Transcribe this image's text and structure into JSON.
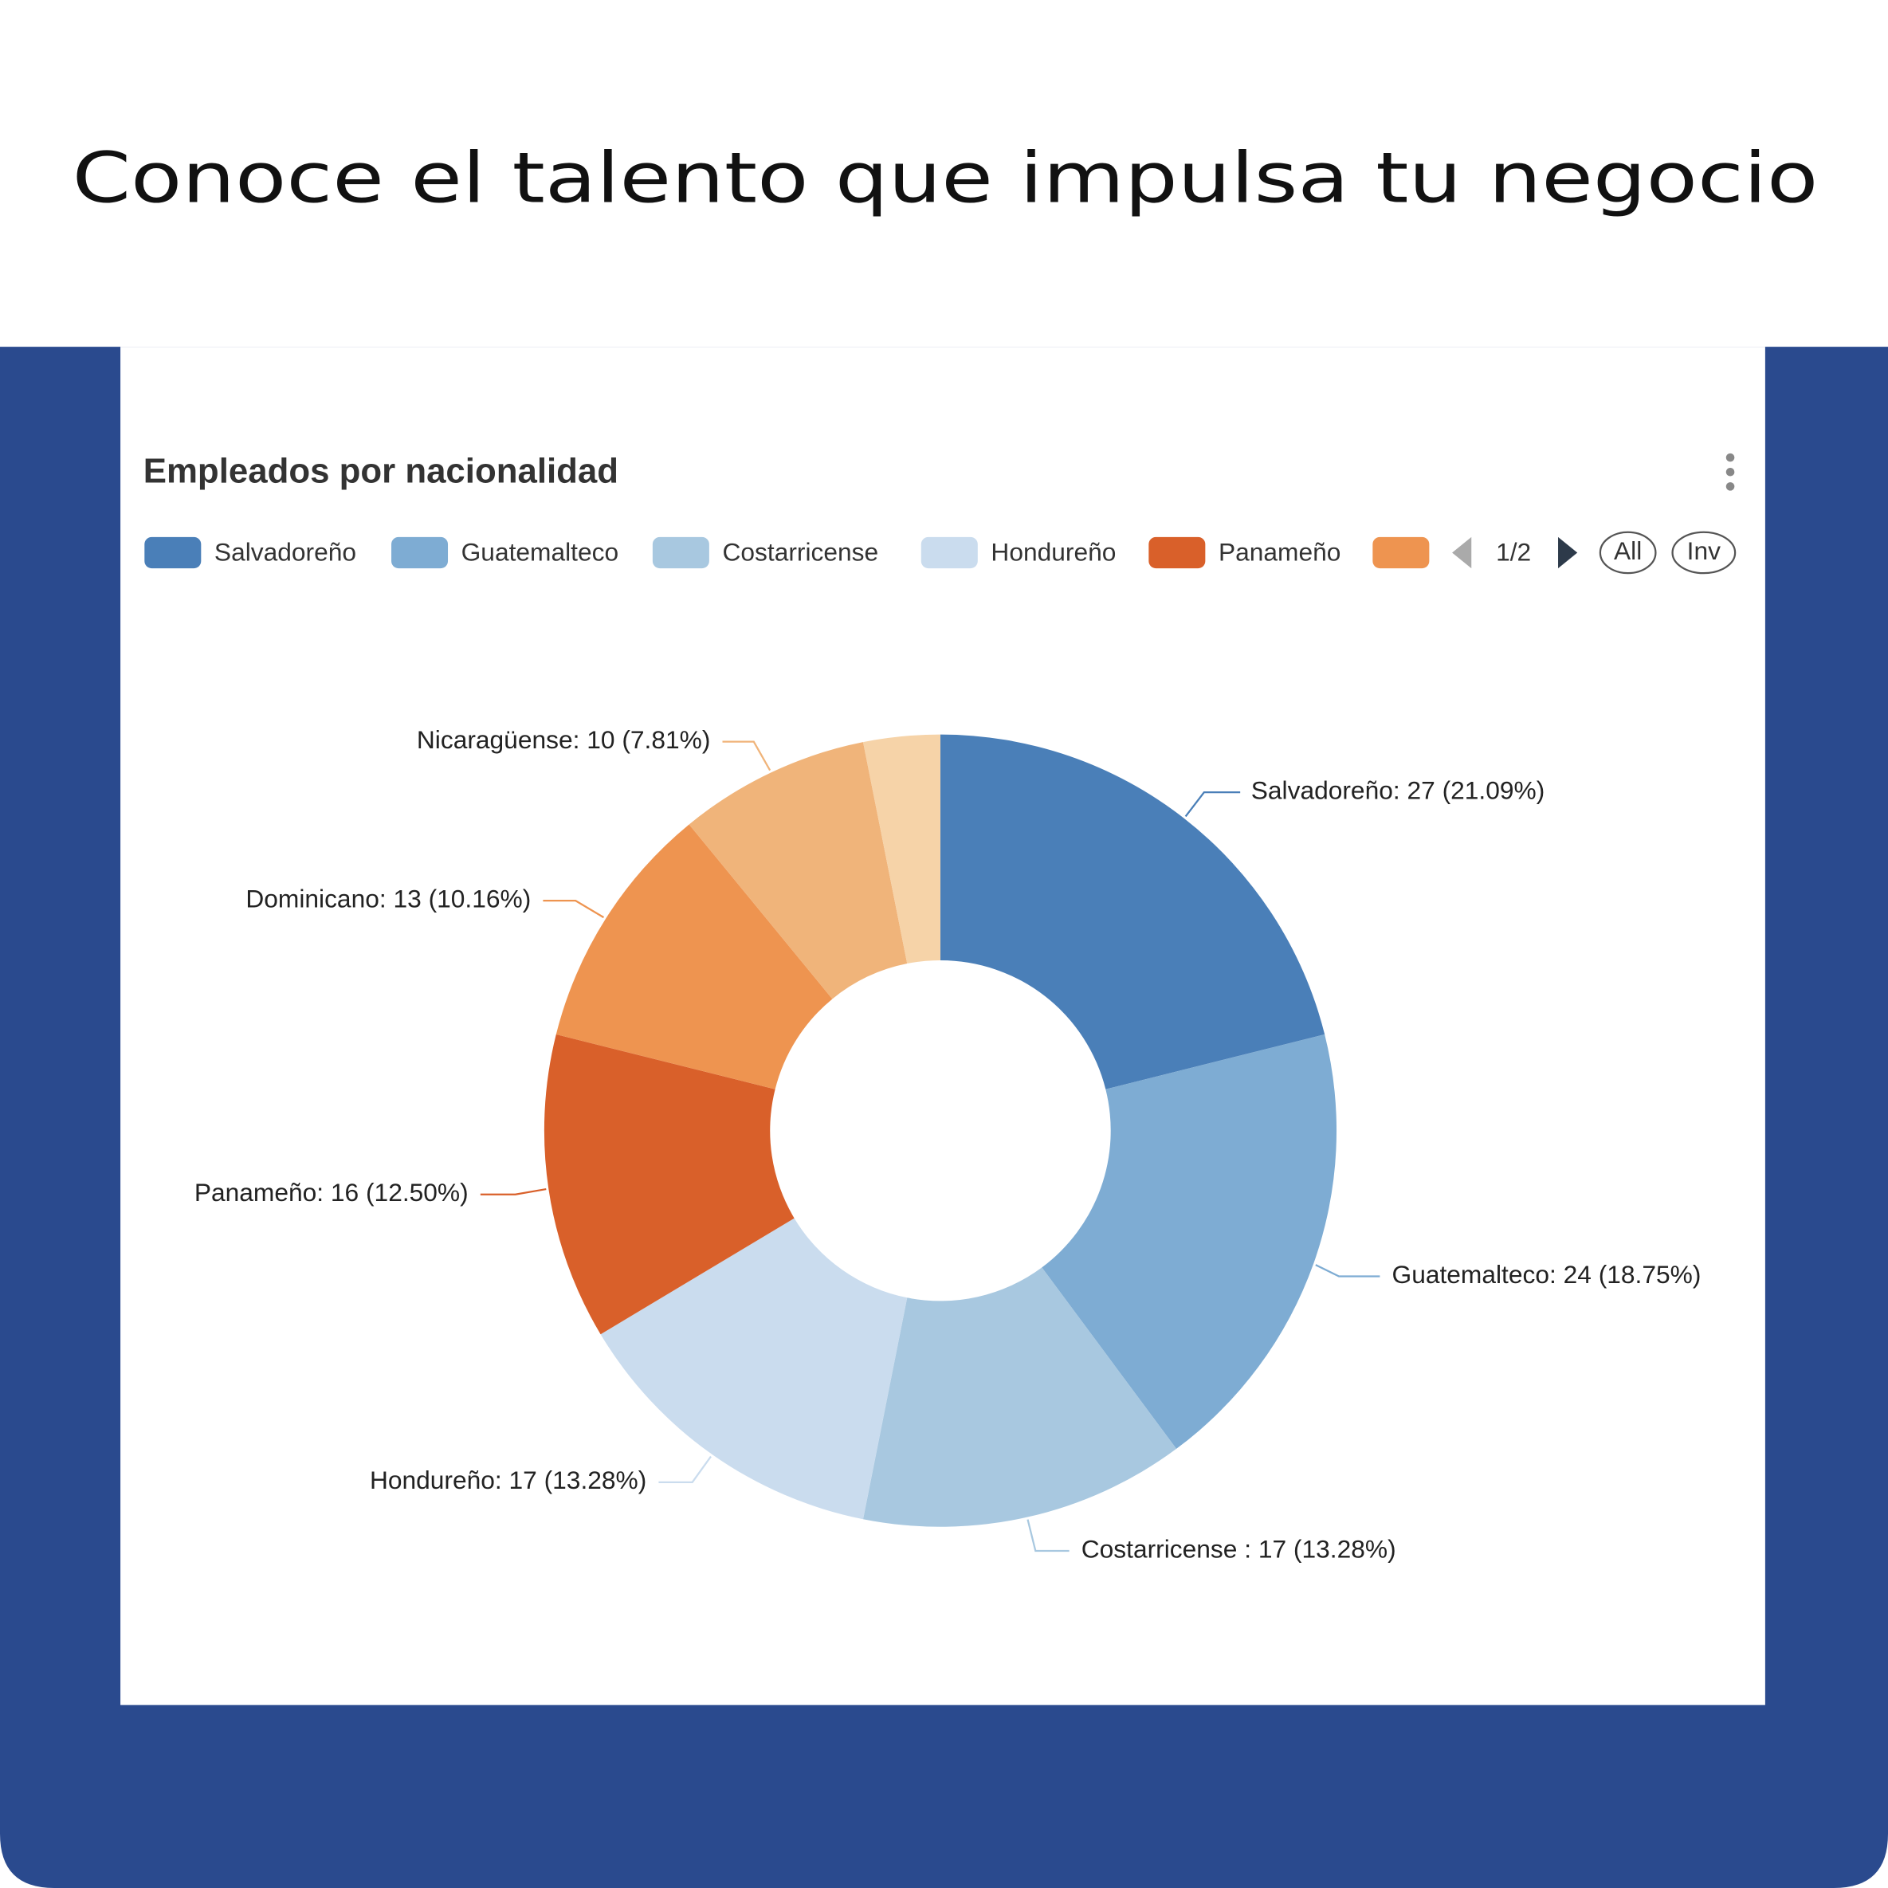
{
  "heading": "Conoce el talento que impulsa tu negocio",
  "chart_data": {
    "type": "pie",
    "title": "Empleados por nacionalidad",
    "values": [
      27,
      24,
      17,
      17,
      16,
      13,
      10,
      4
    ],
    "value_labels": [
      "Salvadoreño: 27 (21.09%)",
      "Guatemalteco: 24 (18.75%)",
      "Costarricense : 17 (13.28%)",
      "Hondureño: 17 (13.28%)",
      "Panameño: 16 (12.50%)",
      "Dominicano: 13 (10.16%)",
      "Nicaragüense: 10 (7.81%)",
      null
    ],
    "colors": [
      "#4a7fb8",
      "#7eacd3",
      "#a8c8e0",
      "#cadcee",
      "#d9602a",
      "#ee9450",
      "#f0b47a",
      "#f6d3a8"
    ],
    "donut_hole": 0.43,
    "legend": [
      "Salvadoreño",
      "Guatemalteco",
      "Costarricense",
      "Hondureño",
      "Panameño"
    ],
    "legend_page": "1/2",
    "legend_buttons": [
      "All",
      "Inv"
    ]
  }
}
